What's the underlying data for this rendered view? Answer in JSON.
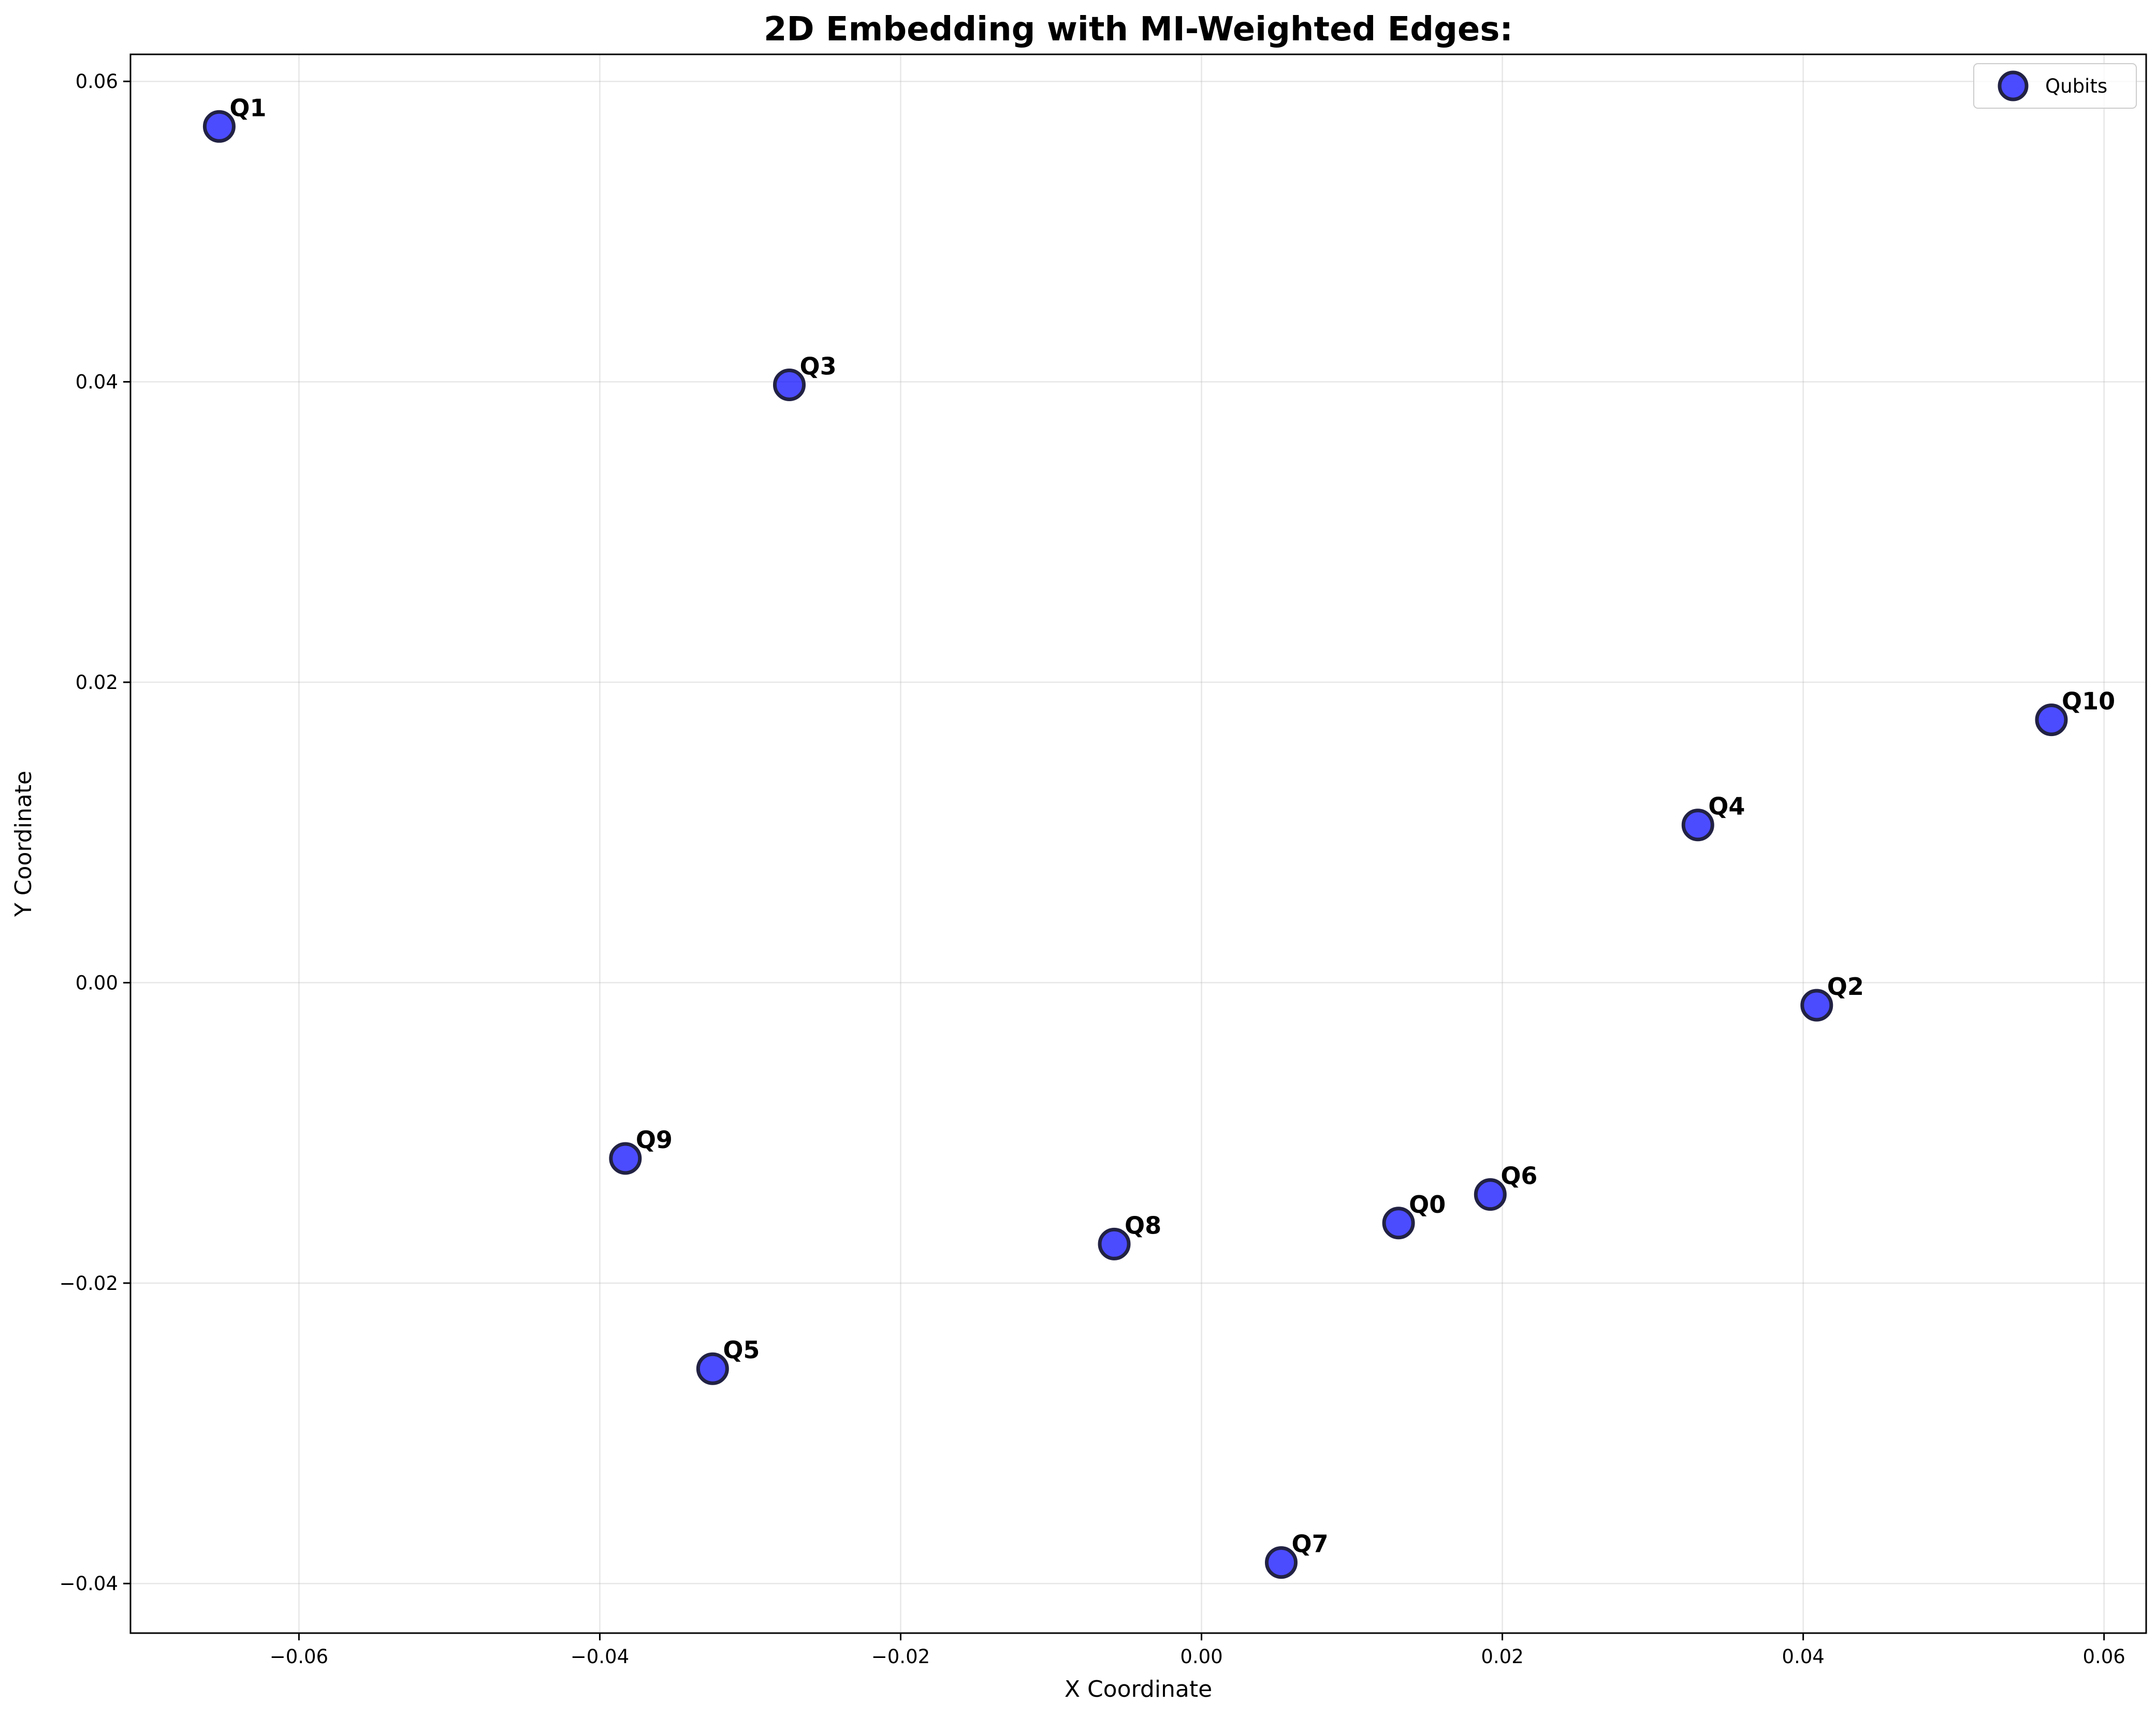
{
  "chart_data": {
    "type": "scatter",
    "title": "2D Embedding with MI-Weighted Edges:",
    "xlabel": "X Coordinate",
    "ylabel": "Y Coordinate",
    "xlim": [
      -0.0712,
      0.0628
    ],
    "ylim": [
      -0.0433,
      0.0618
    ],
    "xticks": [
      -0.06,
      -0.04,
      -0.02,
      0.0,
      0.02,
      0.04,
      0.06
    ],
    "xtick_labels": [
      "−0.06",
      "−0.04",
      "−0.02",
      "0.00",
      "0.02",
      "0.04",
      "0.06"
    ],
    "yticks": [
      -0.04,
      -0.02,
      0.0,
      0.02,
      0.04,
      0.06
    ],
    "ytick_labels": [
      "−0.04",
      "−0.02",
      "0.00",
      "0.02",
      "0.04",
      "0.06"
    ],
    "grid": true,
    "legend_placement": "top-right",
    "series": [
      {
        "name": "Qubits",
        "color": "#0000ff",
        "edge_color": "#222244",
        "points": [
          {
            "label": "Q0",
            "x": 0.0131,
            "y": -0.016
          },
          {
            "label": "Q1",
            "x": -0.0653,
            "y": 0.057
          },
          {
            "label": "Q2",
            "x": 0.0409,
            "y": -0.0015
          },
          {
            "label": "Q3",
            "x": -0.0274,
            "y": 0.0398
          },
          {
            "label": "Q4",
            "x": 0.033,
            "y": 0.0105
          },
          {
            "label": "Q5",
            "x": -0.0325,
            "y": -0.0257
          },
          {
            "label": "Q6",
            "x": 0.0192,
            "y": -0.0141
          },
          {
            "label": "Q7",
            "x": 0.0053,
            "y": -0.0386
          },
          {
            "label": "Q8",
            "x": -0.0058,
            "y": -0.0174
          },
          {
            "label": "Q9",
            "x": -0.0383,
            "y": -0.0117
          },
          {
            "label": "Q10",
            "x": 0.0565,
            "y": 0.0175
          }
        ]
      }
    ]
  }
}
